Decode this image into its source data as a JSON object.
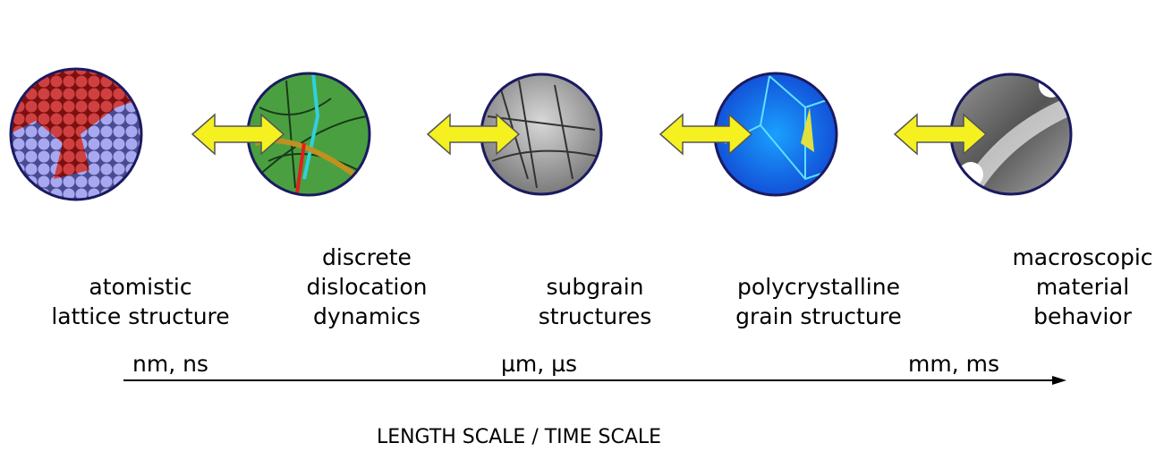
{
  "stages": [
    {
      "lines": [
        "atomistic",
        "lattice structure"
      ]
    },
    {
      "lines": [
        "discrete",
        "dislocation",
        "dynamics"
      ]
    },
    {
      "lines": [
        "subgrain",
        "structures"
      ]
    },
    {
      "lines": [
        "polycrystalline",
        "grain structure"
      ]
    },
    {
      "lines": [
        "macroscopic",
        "material",
        "behavior"
      ]
    }
  ],
  "scale_labels": [
    "nm, ns",
    "µm, µs",
    "mm, ms"
  ],
  "axis_label": "LENGTH SCALE / TIME SCALE"
}
